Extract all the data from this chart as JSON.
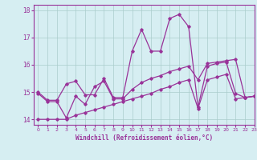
{
  "x": [
    0,
    1,
    2,
    3,
    4,
    5,
    6,
    7,
    8,
    9,
    10,
    11,
    12,
    13,
    14,
    15,
    16,
    17,
    18,
    19,
    20,
    21,
    22,
    23
  ],
  "line1": [
    15.0,
    14.7,
    14.7,
    15.3,
    15.4,
    14.9,
    14.9,
    15.5,
    14.8,
    14.8,
    16.5,
    17.3,
    16.5,
    16.5,
    17.7,
    17.85,
    17.4,
    14.45,
    15.95,
    16.05,
    16.1,
    14.95,
    14.8,
    14.85
  ],
  "line2": [
    14.95,
    14.65,
    14.65,
    14.05,
    14.85,
    14.55,
    15.2,
    15.4,
    14.75,
    14.75,
    15.1,
    15.35,
    15.5,
    15.6,
    15.75,
    15.85,
    15.95,
    15.45,
    16.05,
    16.1,
    16.15,
    16.2,
    14.8,
    14.85
  ],
  "line3": [
    14.0,
    14.0,
    14.0,
    14.0,
    14.15,
    14.25,
    14.35,
    14.45,
    14.55,
    14.65,
    14.75,
    14.85,
    14.95,
    15.1,
    15.2,
    15.35,
    15.45,
    14.4,
    15.45,
    15.55,
    15.65,
    14.75,
    14.8,
    14.85
  ],
  "line_color": "#993399",
  "bg_color": "#d6eef2",
  "grid_color": "#aacccc",
  "xlabel": "Windchill (Refroidissement éolien,°C)",
  "xlim": [
    -0.5,
    23
  ],
  "ylim": [
    13.8,
    18.2
  ],
  "yticks": [
    14,
    15,
    16,
    17,
    18
  ],
  "xticks": [
    0,
    1,
    2,
    3,
    4,
    5,
    6,
    7,
    8,
    9,
    10,
    11,
    12,
    13,
    14,
    15,
    16,
    17,
    18,
    19,
    20,
    21,
    22,
    23
  ]
}
